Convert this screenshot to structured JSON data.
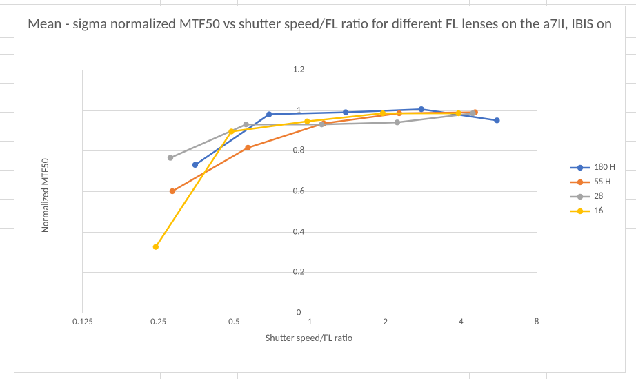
{
  "title": "Mean - sigma normalized MTF50 vs shutter speed/FL ratio for different FL lenses on the a7II, IBIS on",
  "xlabel": "Shutter speed/FL ratio",
  "ylabel": "Normalized MTF50",
  "background_color": "#ffffff",
  "grid_color": "#d9d9d9",
  "text_color": "#595959",
  "title_fontsize": 21,
  "axis_label_fontsize": 14,
  "tick_fontsize": 13,
  "legend_fontsize": 13,
  "chart": {
    "type": "line",
    "x_scale": "log2",
    "xlim": [
      0.125,
      8
    ],
    "xticks": [
      0.125,
      0.25,
      0.5,
      1,
      2,
      4,
      8
    ],
    "ylim": [
      0,
      1.2
    ],
    "yticks": [
      0,
      0.2,
      0.4,
      0.6,
      0.8,
      1,
      1.2
    ],
    "line_width": 2.5,
    "marker_radius": 4.2,
    "series": [
      {
        "name": "180 H",
        "color": "#4472c4",
        "x": [
          0.35,
          0.69,
          1.39,
          2.78,
          5.56
        ],
        "y": [
          0.73,
          0.98,
          0.99,
          1.005,
          0.95
        ]
      },
      {
        "name": "55 H",
        "color": "#ed7d31",
        "x": [
          0.284,
          0.568,
          1.136,
          2.27,
          4.55
        ],
        "y": [
          0.6,
          0.815,
          0.935,
          0.985,
          0.99
        ]
      },
      {
        "name": "28",
        "color": "#a5a5a5",
        "x": [
          0.279,
          0.558,
          1.116,
          2.23,
          4.46
        ],
        "y": [
          0.765,
          0.93,
          0.93,
          0.94,
          0.985
        ]
      },
      {
        "name": "16",
        "color": "#ffc000",
        "x": [
          0.244,
          0.488,
          0.977,
          1.953,
          3.91
        ],
        "y": [
          0.325,
          0.895,
          0.945,
          0.985,
          0.985
        ]
      }
    ]
  },
  "spreadsheet_gridlines": {
    "vlines_x": [
      8,
      120,
      232,
      344,
      456,
      568,
      680,
      792,
      904
    ],
    "hlines_y": [
      6,
      30,
      54,
      78,
      120,
      162,
      204,
      246,
      288,
      330,
      372,
      414,
      456,
      498,
      540
    ]
  }
}
